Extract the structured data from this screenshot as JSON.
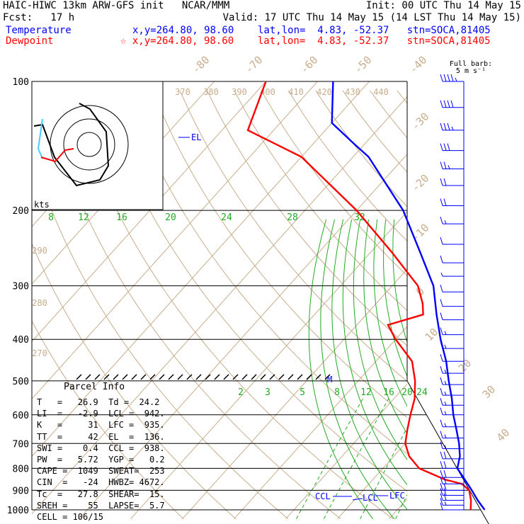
{
  "header": {
    "model": "HAIC-HIWC 13km ARW-GFS init   NCAR/MMM",
    "init": "Init: 00 UTC Thu 14 May 15",
    "fcst": "Fcst:   17 h",
    "valid": "Valid: 17 UTC Thu 14 May 15 (14 LST Thu 14 May 15)",
    "temperature_label": "Temperature",
    "dewpoint_label": "Dewpoint",
    "temp_loc": "x,y=264.80, 98.60    lat,lon=  4.83, -52.37   stn=SOCA,81405",
    "dew_loc": "☆ x,y=264.80, 98.60    lat,lon=  4.83, -52.37   stn=SOCA,81405",
    "temp_color": "#0000ff",
    "dew_color": "#ff0000"
  },
  "barb_title": "Full barb:",
  "barb_unit": "5 m s⁻¹",
  "hodo_unit": "kts",
  "parcel_title": "Parcel Info",
  "parcel_rows": [
    "T   =   26.9  Td =  24.2",
    "LI  =   -2.9  LCL =  942.",
    "K   =     31  LFC =  935.",
    "TT  =     42  EL  =  136.",
    "SWI =    0.4  CCL =  938.",
    "PW  =   5.72  YGP =   0.2",
    "CAPE =  1049  SWEAT=  253",
    "CIN  =   -24  HWBZ= 4672.",
    "Tc  =   27.8  SHEAR=  15.",
    "SREH =    55  LAPSE=  5.7",
    "CELL = 106/15"
  ],
  "chart_data": {
    "type": "line",
    "subtype": "skew-T log-P",
    "y_axis": "pressure (hPa)",
    "y_ticks": [
      100,
      200,
      300,
      400,
      500,
      600,
      700,
      800,
      900,
      1000
    ],
    "isotherm_labels": [
      -80,
      -70,
      -60,
      -50,
      -40,
      -30,
      -20,
      -10,
      0,
      10,
      20,
      30,
      40
    ],
    "theta_labels_top": [
      370,
      380,
      390,
      400,
      410,
      420,
      430,
      440
    ],
    "theta_labels_left": [
      290,
      280,
      270
    ],
    "thetae_labels": [
      8,
      12,
      16,
      20,
      24,
      28,
      32
    ],
    "mixing_ratio_labels": [
      "2",
      "3",
      "5",
      "8",
      "12",
      "16",
      "20",
      "24"
    ],
    "markers": {
      "el": "EL",
      "ccl": "CCL",
      "lcl": "LCL",
      "lfc": "LFC",
      "m": "M"
    },
    "series": [
      {
        "name": "Temperature",
        "color": "#0000ff",
        "pressure": [
          1000,
          950,
          900,
          850,
          800,
          750,
          700,
          650,
          600,
          550,
          500,
          450,
          400,
          350,
          300,
          250,
          200,
          150,
          140,
          125,
          100
        ],
        "values": [
          26.9,
          23.9,
          21.0,
          17.8,
          14.4,
          12.8,
          10.4,
          7.5,
          4.3,
          1.2,
          -2.5,
          -6.4,
          -11.3,
          -16.4,
          -22.0,
          -30.5,
          -41.0,
          -57.0,
          -62.0,
          -70.0,
          -77.0
        ]
      },
      {
        "name": "Dewpoint",
        "color": "#ff0000",
        "pressure": [
          1000,
          950,
          900,
          870,
          850,
          800,
          750,
          700,
          650,
          600,
          550,
          500,
          450,
          400,
          370,
          350,
          330,
          300,
          250,
          200,
          150,
          130,
          100
        ],
        "values": [
          24.2,
          22.6,
          20.5,
          18.0,
          14.0,
          7.0,
          3.0,
          0.0,
          -2.0,
          -4.0,
          -6.0,
          -9.0,
          -13.0,
          -20.0,
          -24.0,
          -19.0,
          -21.0,
          -25.0,
          -36.0,
          -50.0,
          -70.0,
          -85.0,
          -90.0
        ]
      }
    ],
    "wind_barbs": [
      {
        "p": 100,
        "spd": 45,
        "dir": 90
      },
      {
        "p": 115,
        "spd": 40,
        "dir": 90
      },
      {
        "p": 130,
        "spd": 35,
        "dir": 90
      },
      {
        "p": 145,
        "spd": 30,
        "dir": 90
      },
      {
        "p": 160,
        "spd": 25,
        "dir": 95
      },
      {
        "p": 175,
        "spd": 20,
        "dir": 100
      },
      {
        "p": 195,
        "spd": 20,
        "dir": 100
      },
      {
        "p": 215,
        "spd": 15,
        "dir": 95
      },
      {
        "p": 240,
        "spd": 10,
        "dir": 90
      },
      {
        "p": 265,
        "spd": 10,
        "dir": 80
      },
      {
        "p": 285,
        "spd": 5,
        "dir": 60
      },
      {
        "p": 310,
        "spd": 10,
        "dir": 70
      },
      {
        "p": 335,
        "spd": 10,
        "dir": 90
      },
      {
        "p": 360,
        "spd": 10,
        "dir": 100
      },
      {
        "p": 390,
        "spd": 15,
        "dir": 110
      },
      {
        "p": 420,
        "spd": 15,
        "dir": 100
      },
      {
        "p": 450,
        "spd": 15,
        "dir": 95
      },
      {
        "p": 480,
        "spd": 15,
        "dir": 90
      },
      {
        "p": 510,
        "spd": 15,
        "dir": 90
      },
      {
        "p": 540,
        "spd": 15,
        "dir": 90
      },
      {
        "p": 570,
        "spd": 15,
        "dir": 90
      },
      {
        "p": 600,
        "spd": 15,
        "dir": 90
      },
      {
        "p": 640,
        "spd": 15,
        "dir": 95
      },
      {
        "p": 680,
        "spd": 15,
        "dir": 100
      },
      {
        "p": 720,
        "spd": 15,
        "dir": 100
      },
      {
        "p": 760,
        "spd": 20,
        "dir": 95
      },
      {
        "p": 800,
        "spd": 20,
        "dir": 95
      },
      {
        "p": 840,
        "spd": 20,
        "dir": 90
      },
      {
        "p": 870,
        "spd": 20,
        "dir": 90
      },
      {
        "p": 900,
        "spd": 20,
        "dir": 90
      },
      {
        "p": 925,
        "spd": 20,
        "dir": 90
      },
      {
        "p": 950,
        "spd": 20,
        "dir": 90
      },
      {
        "p": 975,
        "spd": 15,
        "dir": 90
      },
      {
        "p": 1000,
        "spd": 10,
        "dir": 90
      }
    ],
    "hodograph_rings": [
      10,
      20,
      30
    ]
  }
}
